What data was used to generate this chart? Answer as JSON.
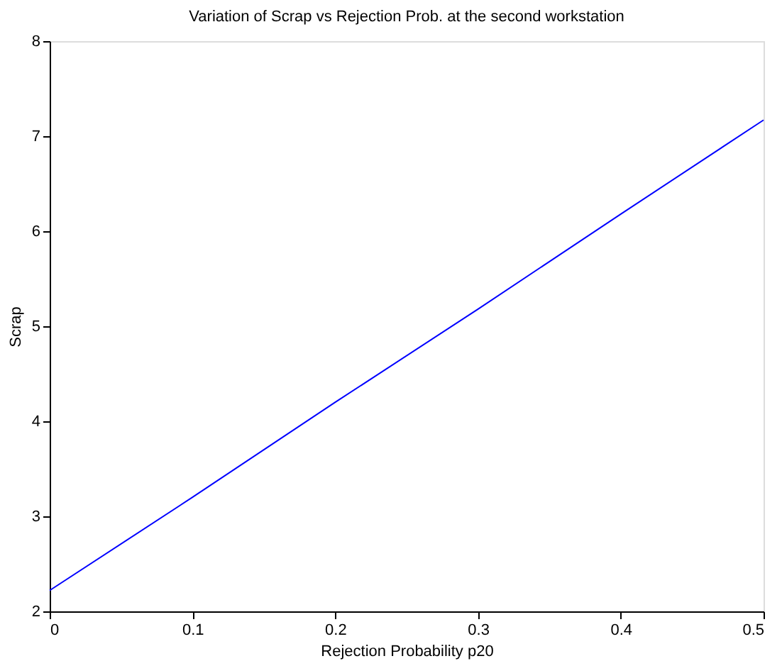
{
  "chart_data": {
    "type": "line",
    "title": "Variation of Scrap vs Rejection Prob. at the second workstation",
    "xlabel": "Rejection Probability p20",
    "ylabel": "Scrap",
    "x": [
      0,
      0.1,
      0.2,
      0.3,
      0.4,
      0.5
    ],
    "series": [
      {
        "color": "#0000ff",
        "values": [
          2.22,
          3.2,
          4.2,
          5.18,
          6.18,
          7.17
        ]
      }
    ],
    "xlim": [
      0,
      0.5
    ],
    "xticks": [
      0,
      0.1,
      0.2,
      0.3,
      0.4,
      0.5
    ],
    "ylim": [
      2,
      8
    ],
    "yticks": [
      2,
      3,
      4,
      5,
      6,
      7,
      8
    ],
    "grid": false,
    "marker": "none",
    "line_style": "solid"
  }
}
